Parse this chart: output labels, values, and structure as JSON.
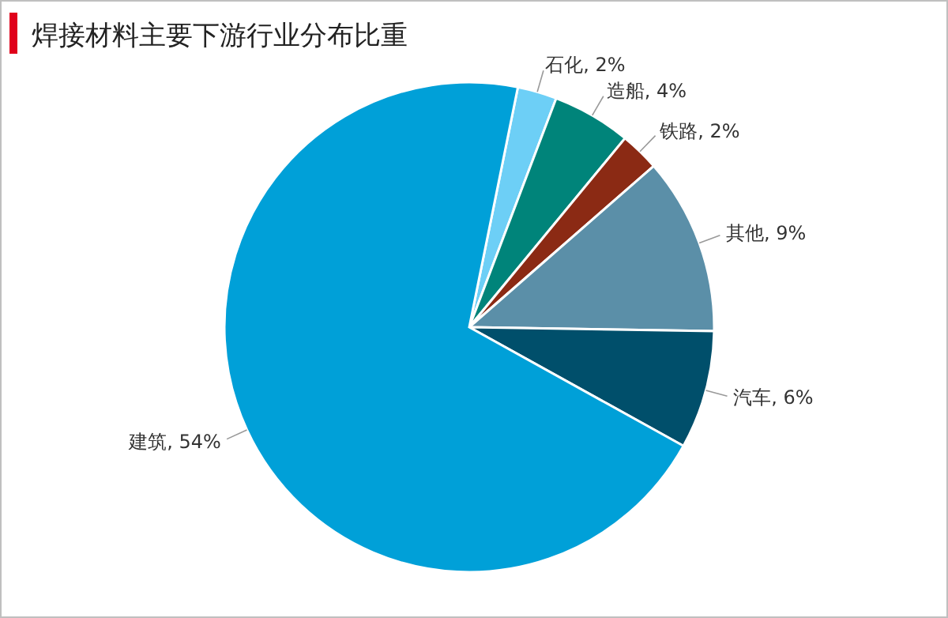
{
  "chart_data": {
    "type": "pie",
    "title": "焊接材料主要下游行业分布比重",
    "categories": [
      "石化",
      "造船",
      "铁路",
      "其他",
      "汽车",
      "建筑"
    ],
    "values": [
      2,
      4,
      2,
      9,
      6,
      54
    ],
    "colors": [
      "#6dcff6",
      "#00847a",
      "#8b2a14",
      "#5b8fa8",
      "#004f6b",
      "#00a0d8"
    ],
    "value_labels": [
      "2%",
      "4%",
      "2%",
      "9%",
      "6%",
      "54%"
    ]
  }
}
